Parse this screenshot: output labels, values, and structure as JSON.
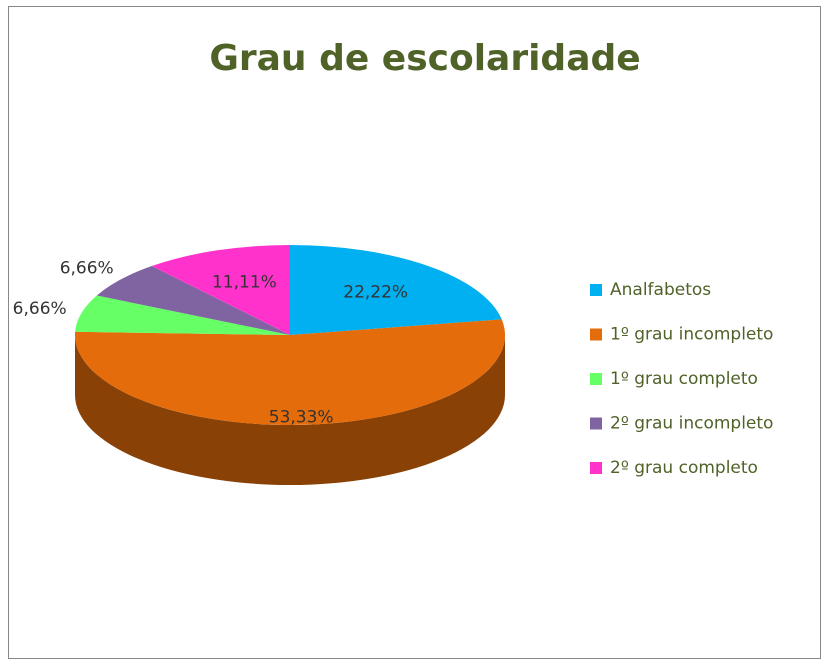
{
  "chart_data": {
    "type": "pie",
    "title": "Grau de escolaridade",
    "categories": [
      "Analfabetos",
      "1º grau incompleto",
      "1º grau completo",
      "2º grau incompleto",
      "2º grau completo"
    ],
    "values": [
      22.22,
      53.33,
      6.66,
      6.66,
      11.11
    ],
    "value_labels": [
      "22,22%",
      "53,33%",
      "6,66%",
      "6,66%",
      "11,11%"
    ],
    "colors": [
      "#00b0f0",
      "#e46c0a",
      "#66ff66",
      "#8064a2",
      "#ff33cc"
    ],
    "legend": "right"
  }
}
